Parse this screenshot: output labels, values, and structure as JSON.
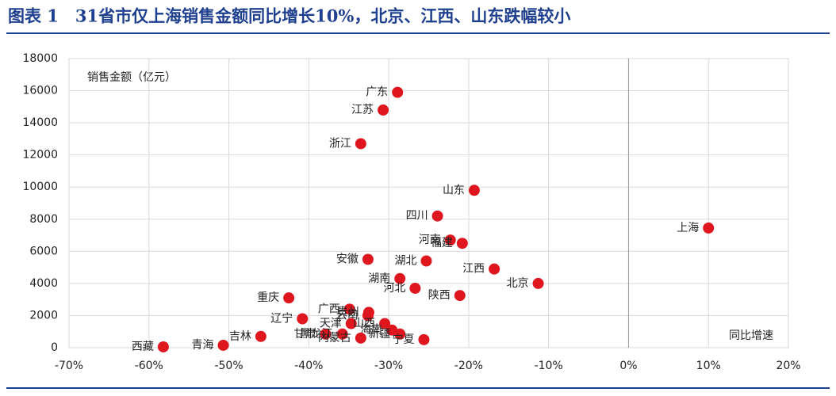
{
  "chart_data": {
    "type": "scatter",
    "title": "图表 1　31省市仅上海销售金额同比增长10%，北京、江西、山东跌幅较小",
    "y_label": "销售金额（亿元）",
    "x_label": "同比增速",
    "color": "#e0161e",
    "grid": true,
    "xlim": [
      -70,
      20
    ],
    "ylim": [
      0,
      18000
    ],
    "xticks": [
      {
        "value": -70,
        "label": "-70%"
      },
      {
        "value": -60,
        "label": "-60%"
      },
      {
        "value": -50,
        "label": "-50%"
      },
      {
        "value": -40,
        "label": "-40%"
      },
      {
        "value": -30,
        "label": "-30%"
      },
      {
        "value": -20,
        "label": "-20%"
      },
      {
        "value": -10,
        "label": "-10%"
      },
      {
        "value": 0,
        "label": "0%"
      },
      {
        "value": 10,
        "label": "10%"
      },
      {
        "value": 20,
        "label": "20%"
      }
    ],
    "yticks": [
      0,
      2000,
      4000,
      6000,
      8000,
      10000,
      12000,
      14000,
      16000,
      18000
    ],
    "labels": [
      "广东",
      "江苏",
      "浙江",
      "山东",
      "四川",
      "河南",
      "福建",
      "上海",
      "安徽",
      "湖北",
      "江西",
      "北京",
      "湖南",
      "河北",
      "陕西",
      "重庆",
      "广西",
      "贵州",
      "云南",
      "辽宁",
      "天津",
      "山西",
      "海南",
      "新疆",
      "吉林",
      "西藏",
      "青海",
      "甘肃",
      "黑龙江",
      "内蒙古",
      "宁夏"
    ],
    "x": [
      -28.9,
      -30.7,
      -33.5,
      -19.3,
      -23.9,
      -22.3,
      -20.8,
      10.0,
      -32.6,
      -25.3,
      -16.8,
      -11.3,
      -28.6,
      -26.7,
      -21.1,
      -42.5,
      -34.9,
      -32.5,
      -32.6,
      -40.8,
      -34.7,
      -30.5,
      -29.6,
      -28.6,
      -46.0,
      -58.2,
      -50.7,
      -37.9,
      -35.8,
      -33.5,
      -25.6
    ],
    "values": [
      15900,
      14800,
      12700,
      9800,
      8200,
      6700,
      6500,
      7450,
      5500,
      5400,
      4900,
      4000,
      4300,
      3700,
      3250,
      3100,
      2400,
      2200,
      2000,
      1800,
      1500,
      1500,
      1100,
      850,
      700,
      50,
      150,
      850,
      850,
      600,
      500
    ]
  }
}
